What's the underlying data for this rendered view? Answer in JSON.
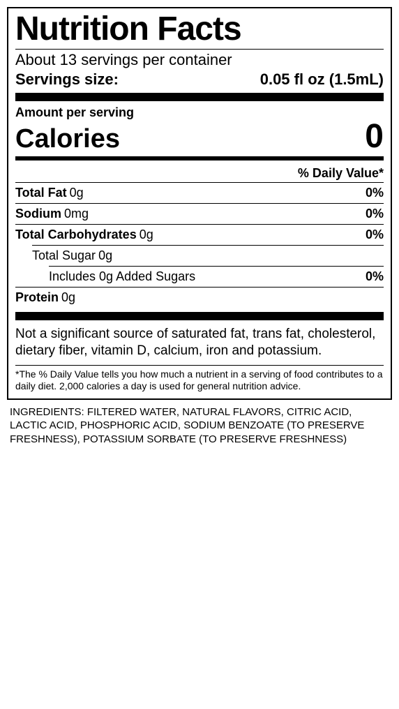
{
  "title": "Nutrition Facts",
  "servings_per": "About 13 servings per container",
  "serving_size_label": "Servings size:",
  "serving_size_value": "0.05 fl oz (1.5mL)",
  "amount_per": "Amount per serving",
  "calories_label": "Calories",
  "calories_value": "0",
  "dv_header": "% Daily Value*",
  "nutrients": {
    "total_fat": {
      "name": "Total Fat",
      "amount": "0g",
      "pct": "0%"
    },
    "sodium": {
      "name": "Sodium",
      "amount": "0mg",
      "pct": "0%"
    },
    "total_carb": {
      "name": "Total Carbohydrates",
      "amount": "0g",
      "pct": "0%"
    },
    "total_sugar": {
      "name": "Total Sugar",
      "amount": "0g",
      "pct": ""
    },
    "added_sugars": {
      "name": "Includes 0g Added Sugars",
      "amount": "",
      "pct": "0%"
    },
    "protein": {
      "name": "Protein",
      "amount": "0g",
      "pct": ""
    }
  },
  "note": "Not a significant source of saturated fat, trans fat, cholesterol, dietary fiber, vitamin D, calcium, iron and potassium.",
  "footnote": "*The % Daily Value tells you how much a nutrient in a serving of food contributes to a daily diet. 2,000 calories a day is used for general nutrition advice.",
  "ingredients": "INGREDIENTS: FILTERED WATER, NATURAL FLAVORS, CITRIC ACID, LACTIC ACID, PHOSPHORIC ACID, SODIUM BENZOATE (TO PRESERVE FRESHNESS), POTASSIUM SORBATE (TO PRESERVE FRESHNESS)",
  "colors": {
    "text": "#000000",
    "bg": "#ffffff"
  }
}
